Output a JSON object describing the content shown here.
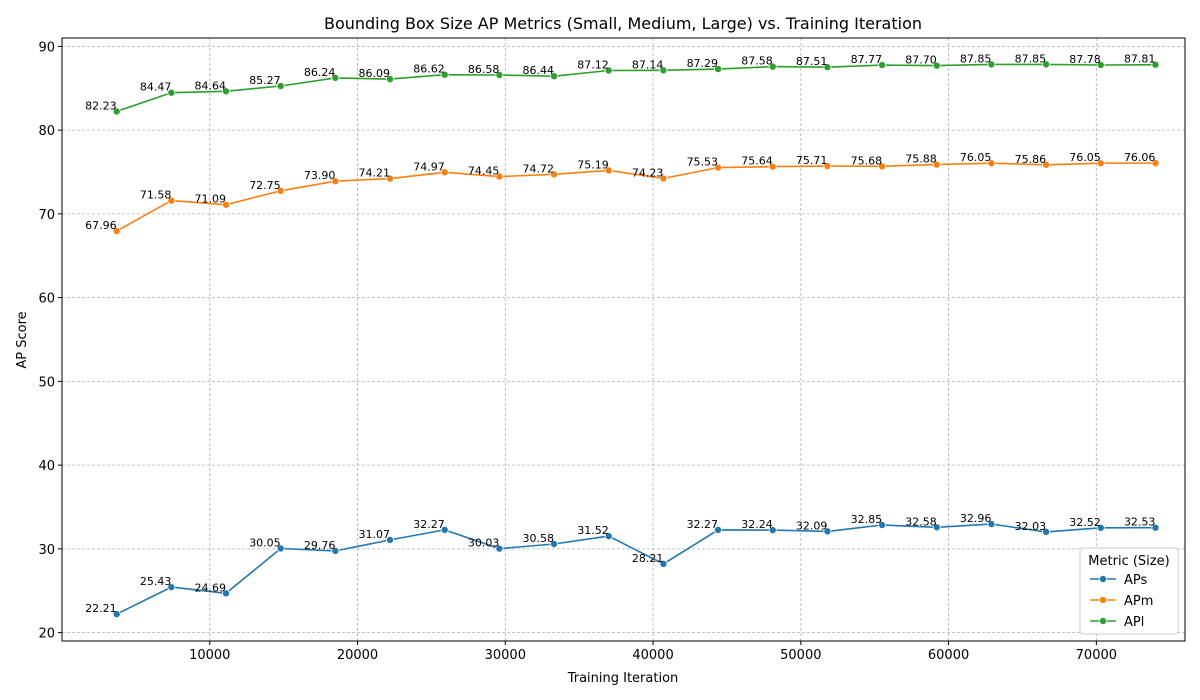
{
  "chart_data": {
    "type": "line",
    "title": "Bounding Box Size AP Metrics (Small, Medium, Large) vs. Training Iteration",
    "xlabel": "Training Iteration",
    "ylabel": "AP Score",
    "xlim": [
      0,
      76000
    ],
    "ylim": [
      19,
      91
    ],
    "xticks": [
      10000,
      20000,
      30000,
      40000,
      50000,
      60000,
      70000
    ],
    "yticks": [
      20,
      30,
      40,
      50,
      60,
      70,
      80,
      90
    ],
    "grid": true,
    "legend": {
      "title": "Metric (Size)",
      "placement": "lower-right"
    },
    "x": [
      3700,
      7400,
      11100,
      14800,
      18500,
      22200,
      25900,
      29600,
      33300,
      37000,
      40700,
      44400,
      48100,
      51800,
      55500,
      59200,
      62900,
      66600,
      70300,
      74000
    ],
    "series": [
      {
        "name": "APs",
        "color": "#1f77b4",
        "values": [
          22.21,
          25.43,
          24.69,
          30.05,
          29.76,
          31.07,
          32.27,
          30.03,
          30.58,
          31.52,
          28.21,
          32.27,
          32.24,
          32.09,
          32.85,
          32.58,
          32.96,
          32.03,
          32.52,
          32.53
        ],
        "labels": [
          "22.21",
          "25.43",
          "24.69",
          "30.05",
          "29.76",
          "31.07",
          "32.27",
          "30.03",
          "30.58",
          "31.52",
          "28.21",
          "32.27",
          "32.24",
          "32.09",
          "32.85",
          "32.58",
          "32.96",
          "32.03",
          "32.52",
          "32.53"
        ]
      },
      {
        "name": "APm",
        "color": "#ff7f0e",
        "values": [
          67.96,
          71.58,
          71.09,
          72.75,
          73.9,
          74.21,
          74.97,
          74.45,
          74.72,
          75.19,
          74.23,
          75.53,
          75.64,
          75.71,
          75.68,
          75.88,
          76.05,
          75.86,
          76.05,
          76.06
        ],
        "labels": [
          "67.96",
          "71.58",
          "71.09",
          "72.75",
          "73.90",
          "74.21",
          "74.97",
          "74.45",
          "74.72",
          "75.19",
          "74.23",
          "75.53",
          "75.64",
          "75.71",
          "75.68",
          "75.88",
          "76.05",
          "75.86",
          "76.05",
          "76.06"
        ]
      },
      {
        "name": "APl",
        "color": "#2ca02c",
        "values": [
          82.23,
          84.47,
          84.64,
          85.27,
          86.24,
          86.09,
          86.62,
          86.58,
          86.44,
          87.12,
          87.14,
          87.29,
          87.58,
          87.51,
          87.77,
          87.7,
          87.85,
          87.85,
          87.78,
          87.81
        ],
        "labels": [
          "82.23",
          "84.47",
          "84.64",
          "85.27",
          "86.24",
          "86.09",
          "86.62",
          "86.58",
          "86.44",
          "87.12",
          "87.14",
          "87.29",
          "87.58",
          "87.51",
          "87.77",
          "87.70",
          "87.85",
          "87.85",
          "87.78",
          "87.81"
        ]
      }
    ]
  }
}
